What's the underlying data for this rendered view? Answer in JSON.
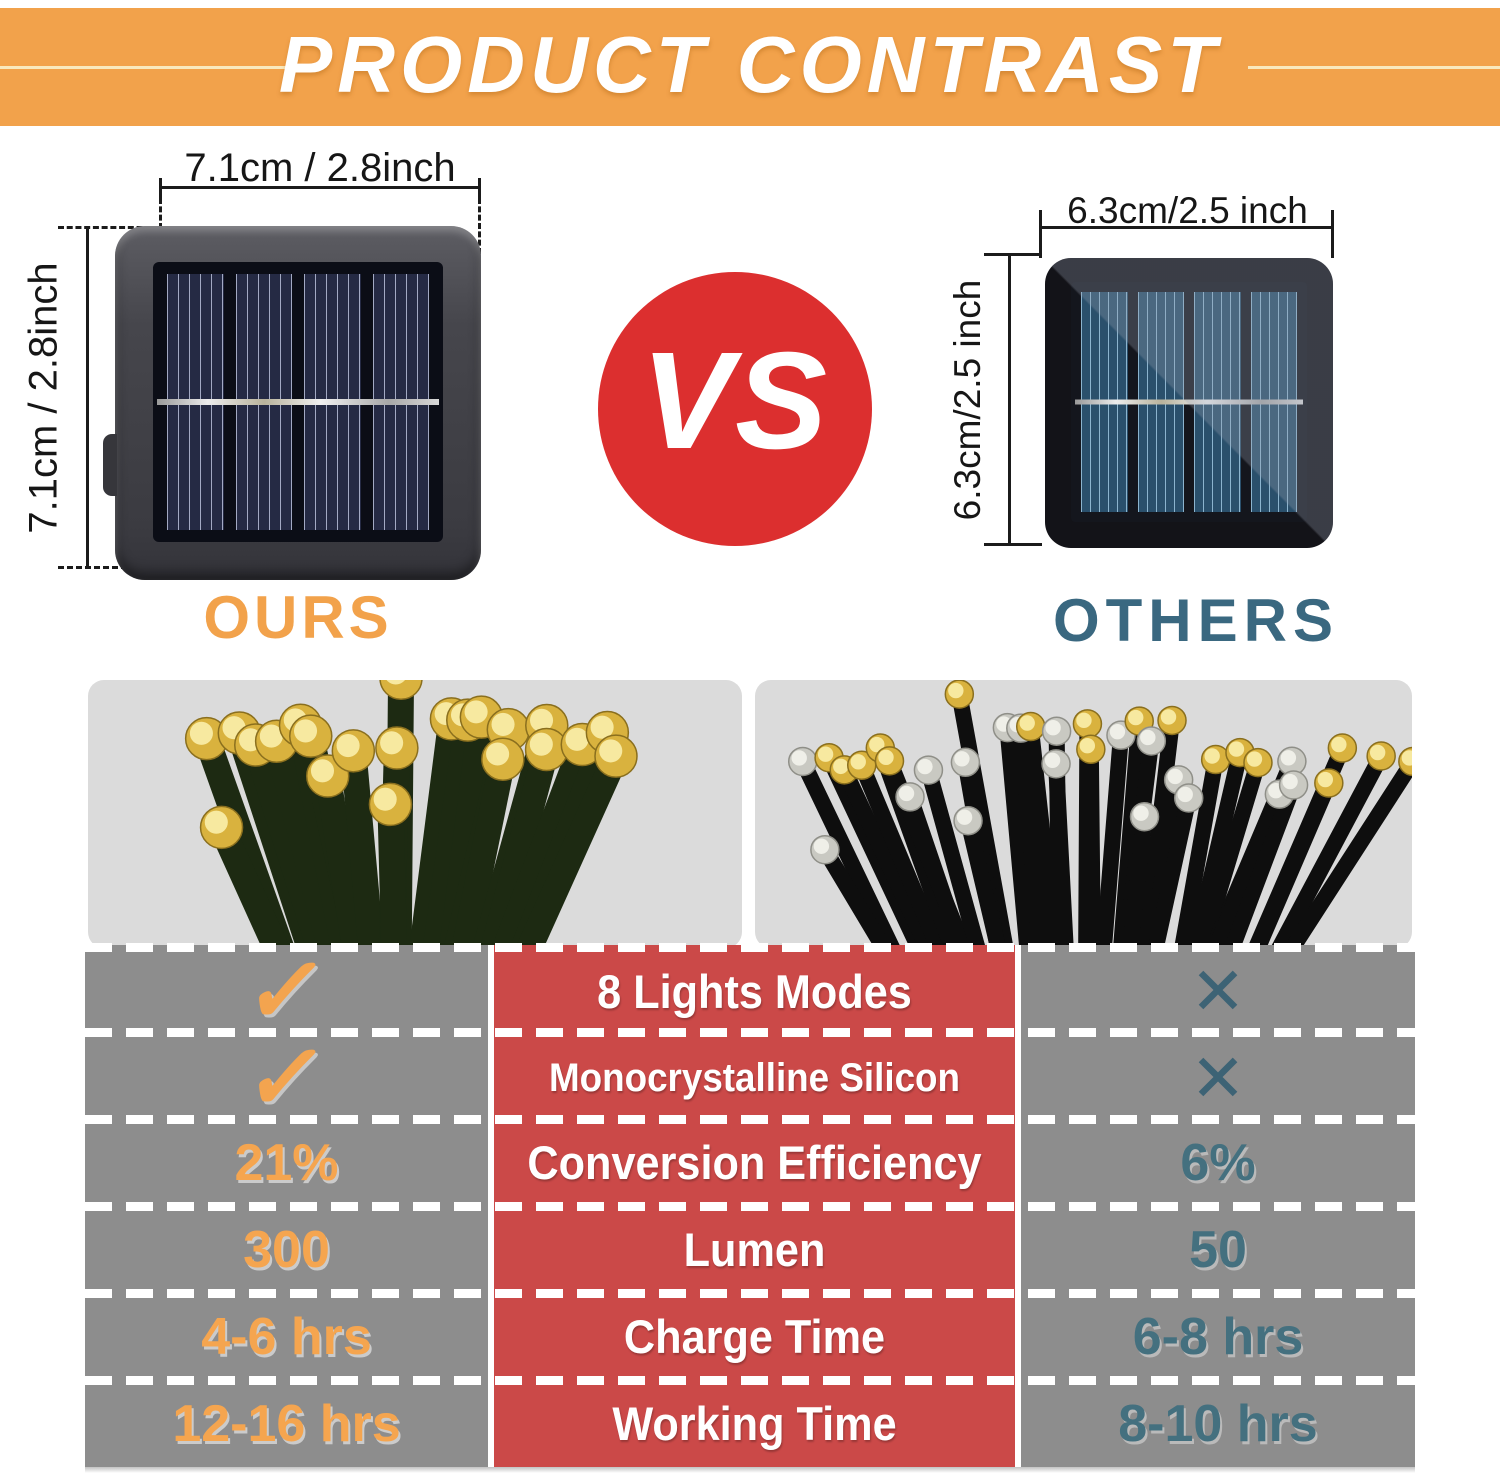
{
  "banner": {
    "title": "PRODUCT CONTRAST",
    "bg_color": "#F2A24B",
    "title_color": "#FFFFFF"
  },
  "vs": {
    "label": "VS",
    "bg_color": "#DC2F2F"
  },
  "ours": {
    "label": "OURS",
    "label_color": "#F2A24B",
    "width_dim": "7.1cm / 2.8inch",
    "height_dim": "7.1cm / 2.8inch"
  },
  "others": {
    "label": "OTHERS",
    "label_color": "#3A6880",
    "width_dim": "6.3cm/2.5 inch",
    "height_dim": "6.3cm/2.5 inch"
  },
  "table": {
    "center_bg": "#CB4948",
    "cell_bg": "#8D8D8D",
    "ours_value_color": "#F5A54F",
    "others_value_color": "#44707F",
    "rows": [
      {
        "feature": "8 Lights Modes",
        "ours": "✓",
        "others": "✕"
      },
      {
        "feature": "Monocrystalline Silicon",
        "ours": "✓",
        "others": "✕"
      },
      {
        "feature": "Conversion Efficiency",
        "ours": "21%",
        "others": "6%"
      },
      {
        "feature": "Lumen",
        "ours": "300",
        "others": "50"
      },
      {
        "feature": "Charge Time",
        "ours": "4-6 hrs",
        "others": "6-8 hrs"
      },
      {
        "feature": "Working Time",
        "ours": "12-16 hrs",
        "others": "8-10 hrs"
      }
    ]
  }
}
